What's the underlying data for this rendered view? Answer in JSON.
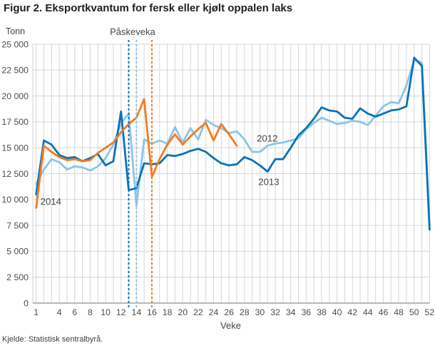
{
  "title": "Figur 2. Eksportkvantum for fersk eller kjølt oppalen laks",
  "source": "Kjelde: Statistisk sentralbyrå.",
  "colors": {
    "series_2012": "#8dc4e8",
    "series_2013": "#0c72b8",
    "series_2014": "#f37b20",
    "grid": "#d6d6d6",
    "axis": "#8f8f8f",
    "tick_text": "#4c4c4c",
    "annotation_text": "#474747"
  },
  "chart_data": {
    "type": "line",
    "title": "Figur 2. Eksportkvantum for fersk eller kjølt oppalen laks",
    "y_unit_label": "Tonn",
    "x_axis_label": "Veke",
    "x_range": [
      1,
      52
    ],
    "ylim": [
      0,
      25000
    ],
    "y_tick_step": 2500,
    "grid": "both",
    "y_tick_labels": [
      "0",
      "2 500",
      "5 000",
      "7 500",
      "10 000",
      "12 500",
      "15 000",
      "17 500",
      "20 000",
      "22 500",
      "25 000"
    ],
    "x_tick_values": [
      1,
      4,
      6,
      8,
      10,
      12,
      14,
      16,
      18,
      20,
      22,
      24,
      26,
      28,
      30,
      32,
      34,
      36,
      38,
      40,
      42,
      44,
      46,
      48,
      50,
      52
    ],
    "series": [
      {
        "name": "2012",
        "color": "#8dc4e8",
        "start_week": 1,
        "values": [
          11500,
          12900,
          13900,
          13600,
          12900,
          13200,
          13100,
          12800,
          13200,
          14000,
          15300,
          17400,
          18300,
          9400,
          15800,
          15400,
          15700,
          15400,
          17000,
          15500,
          16900,
          15800,
          17700,
          17200,
          16900,
          16400,
          16600,
          15800,
          14600,
          14600,
          15200,
          15400,
          15500,
          15700,
          15900,
          16800,
          17400,
          17900,
          17600,
          17300,
          17400,
          17600,
          17500,
          17200,
          18100,
          19000,
          19400,
          19300,
          21000,
          23500,
          23200,
          7500
        ]
      },
      {
        "name": "2013",
        "color": "#0c72b8",
        "start_week": 1,
        "values": [
          10500,
          15700,
          15300,
          14300,
          14000,
          14100,
          13700,
          14000,
          14400,
          13300,
          13700,
          18500,
          10900,
          11100,
          13500,
          13400,
          13500,
          14300,
          14200,
          14400,
          14700,
          14900,
          14600,
          14000,
          13500,
          13300,
          13400,
          14100,
          13800,
          13300,
          12700,
          13900,
          13900,
          15000,
          16200,
          16900,
          17800,
          18900,
          18600,
          18500,
          17900,
          17800,
          18800,
          18300,
          18000,
          18300,
          18600,
          18700,
          19000,
          23700,
          22900,
          7100
        ]
      },
      {
        "name": "2014",
        "color": "#f37b20",
        "start_week": 1,
        "values": [
          9200,
          15200,
          14600,
          14100,
          13800,
          13900,
          13700,
          13800,
          14500,
          15000,
          15500,
          16500,
          17300,
          17900,
          19700,
          12200,
          13900,
          15300,
          16300,
          15300,
          16100,
          16800,
          17400,
          15700,
          17300,
          16300,
          15200
        ]
      }
    ],
    "event_lines": {
      "label": "Påskeveka",
      "label_week": 13.5,
      "lines": [
        {
          "series": "2013",
          "week": 13,
          "color": "#0c72b8"
        },
        {
          "series": "2012",
          "week": 14,
          "color": "#8dc4e8"
        },
        {
          "series": "2014",
          "week": 16,
          "color": "#f37b20"
        }
      ]
    },
    "annotations": [
      {
        "text": "2014",
        "week": 1.55,
        "value": 9500,
        "anchor": "start"
      },
      {
        "text": "2012",
        "week": 29.6,
        "value": 15600,
        "anchor": "start"
      },
      {
        "text": "2013",
        "week": 29.8,
        "value": 11400,
        "anchor": "start"
      }
    ]
  }
}
